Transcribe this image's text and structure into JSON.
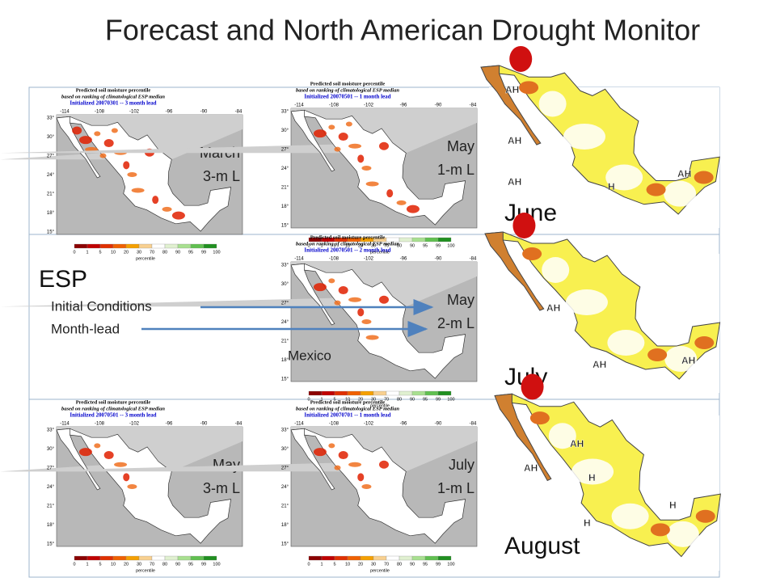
{
  "title": "Forecast and North American Drought Monitor",
  "esp": {
    "title": "ESP",
    "lines": [
      "Initial Conditions",
      "Month-lead"
    ]
  },
  "mexico_label": "Mexico",
  "panels": [
    {
      "header": [
        "Predicted soil moisture percentile",
        "based on ranking of climatological ESP median",
        "Initialized 20070301 -- 3 month lead"
      ],
      "label": [
        "March",
        "3-m L"
      ]
    },
    {
      "header": [
        "Predicted soil moisture percentile",
        "based on ranking of climatological ESP median",
        "Initialized 20070501 -- 1 month lead"
      ],
      "label": [
        "May",
        "1-m L"
      ]
    },
    {
      "header": [
        "Predicted soil moisture percentile",
        "based on ranking of climatological ESP median",
        "Initialized 20070501 -- 2 month lead"
      ],
      "label": [
        "May",
        "2-m L"
      ]
    },
    {
      "header": [
        "Predicted soil moisture percentile",
        "based on ranking of climatological ESP median",
        "Initialized 20070501 -- 3 month lead"
      ],
      "label": [
        "May",
        "3-m L"
      ]
    },
    {
      "header": [
        "Predicted soil moisture percentile",
        "based on ranking of climatological ESP median",
        "Initialized 20070701 -- 1 month lead"
      ],
      "label": [
        "July",
        "1-m L"
      ]
    }
  ],
  "lon_ticks": [
    "-114",
    "-108",
    "-102",
    "-96",
    "-90",
    "-84"
  ],
  "lat_ticks": [
    "33°",
    "30°",
    "27°",
    "24°",
    "21°",
    "18°",
    "15°"
  ],
  "colorbar_ticks": [
    "0",
    "1",
    "5",
    "10",
    "20",
    "30",
    "70",
    "80",
    "90",
    "95",
    "99",
    "100"
  ],
  "colorbar_label": "percentile",
  "drought_maps": [
    {
      "month": "June",
      "labels": [
        "AH",
        "AH",
        "AH",
        "H",
        "AH"
      ]
    },
    {
      "month": "July",
      "labels": [
        "AH",
        "AH",
        "AH"
      ]
    },
    {
      "month": "August",
      "labels": [
        "AH",
        "AH",
        "H",
        "H",
        "H"
      ]
    }
  ]
}
